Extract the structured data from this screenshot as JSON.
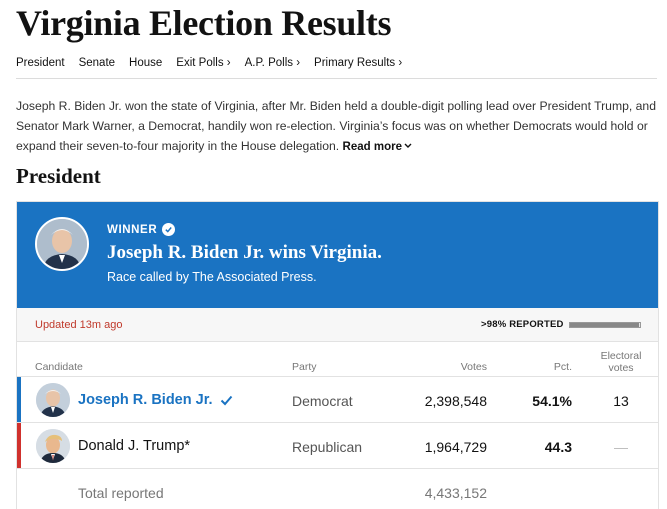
{
  "page": {
    "title": "Virginia Election Results"
  },
  "nav": {
    "items": [
      {
        "label": "President"
      },
      {
        "label": "Senate"
      },
      {
        "label": "House"
      },
      {
        "label": "Exit Polls ›"
      },
      {
        "label": "A.P. Polls ›"
      },
      {
        "label": "Primary Results ›"
      }
    ]
  },
  "intro": {
    "text": "Joseph R. Biden Jr. won the state of Virginia, after Mr. Biden held a double-digit polling lead over President Trump, and Senator Mark Warner, a Democrat, handily won re-election. Virginia’s focus was on whether Democrats would hold or expand their seven-to-four majority in the House delegation.",
    "read_more": "Read more"
  },
  "section": {
    "title": "President"
  },
  "banner": {
    "label": "WINNER",
    "headline": "Joseph R. Biden Jr. wins Virginia.",
    "subtext": "Race called by The Associated Press.",
    "color": "#1a73c2"
  },
  "status": {
    "updated": "Updated 13m ago",
    "reported": ">98% REPORTED",
    "reported_fraction": 0.98
  },
  "table": {
    "headers": {
      "candidate": "Candidate",
      "party": "Party",
      "votes": "Votes",
      "pct": "Pct.",
      "ev_line1": "Electoral",
      "ev_line2": "votes"
    },
    "rows": [
      {
        "name": "Joseph R. Biden Jr.",
        "party": "Democrat",
        "votes": "2,398,548",
        "pct": "54.1%",
        "ev": "13",
        "color": "#1a73c2",
        "winner": true
      },
      {
        "name": "Donald J. Trump*",
        "party": "Republican",
        "votes": "1,964,729",
        "pct": "44.3",
        "ev": "—",
        "color": "#d0312d",
        "winner": false
      }
    ],
    "total": {
      "label": "Total reported",
      "votes": "4,433,152"
    }
  }
}
